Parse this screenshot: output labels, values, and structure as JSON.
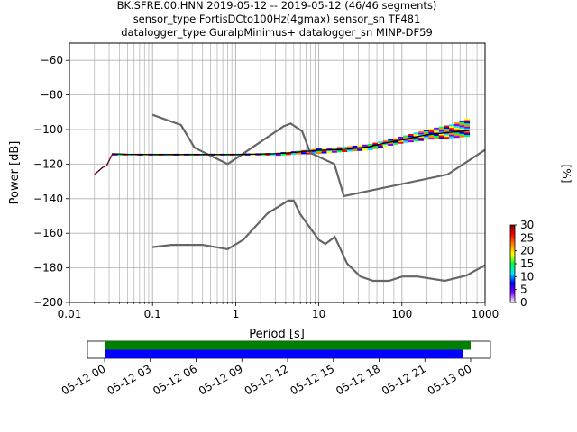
{
  "title_lines": [
    "BK.SFRE.00.HNN   2019-05-12 -- 2019-05-12  (46/46 segments)",
    "sensor_type FortisDCto100Hz(4gmax) sensor_sn TF481",
    "datalogger_type GuralpMinimus+ datalogger_sn MINP-DF59"
  ],
  "chart_data": [
    {
      "type": "heatmap",
      "xlabel": "Period [s]",
      "ylabel": "Power [dB]",
      "x_scale": "log",
      "xlim": [
        0.01,
        1000
      ],
      "ylim": [
        -200,
        -50
      ],
      "x_ticks": [
        {
          "value": 0.01,
          "label": "0.01"
        },
        {
          "value": 0.1,
          "label": "0.1"
        },
        {
          "value": 1,
          "label": "1"
        },
        {
          "value": 10,
          "label": "10"
        },
        {
          "value": 100,
          "label": "100"
        },
        {
          "value": 1000,
          "label": "1000"
        }
      ],
      "y_ticks": [
        -60,
        -80,
        -100,
        -120,
        -140,
        -160,
        -180,
        -200
      ],
      "grid": true,
      "colorbar": {
        "label": "[%]",
        "range": [
          0,
          30
        ],
        "ticks": [
          0,
          5,
          10,
          15,
          20,
          25,
          30
        ],
        "colors": [
          "#ffffff",
          "#8000ff",
          "#0000ff",
          "#00e6ff",
          "#00ff40",
          "#ffff00",
          "#ff8000",
          "#ff0000",
          "#800000"
        ]
      },
      "noise_models": {
        "color": "#666666",
        "high": [
          [
            0.1,
            -91.5
          ],
          [
            0.22,
            -97.4
          ],
          [
            0.32,
            -110.5
          ],
          [
            0.8,
            -120
          ],
          [
            3.8,
            -98
          ],
          [
            4.6,
            -96.5
          ],
          [
            6.3,
            -101
          ],
          [
            7.9,
            -113.5
          ],
          [
            15.4,
            -120
          ],
          [
            20,
            -138.5
          ],
          [
            354.8,
            -126
          ],
          [
            10000,
            -80.1
          ]
        ],
        "low": [
          [
            0.1,
            -168
          ],
          [
            0.17,
            -166.7
          ],
          [
            0.4,
            -166.7
          ],
          [
            0.8,
            -169.2
          ],
          [
            1.24,
            -163.7
          ],
          [
            2.4,
            -148.6
          ],
          [
            4.3,
            -141.1
          ],
          [
            5,
            -141.1
          ],
          [
            6,
            -149
          ],
          [
            10,
            -163.8
          ],
          [
            12,
            -166.2
          ],
          [
            15.6,
            -162.1
          ],
          [
            21.9,
            -177.5
          ],
          [
            31.6,
            -185
          ],
          [
            45,
            -187.5
          ],
          [
            70,
            -187.5
          ],
          [
            101,
            -185
          ],
          [
            154,
            -185
          ],
          [
            328,
            -187.5
          ],
          [
            600,
            -184.4
          ],
          [
            10000,
            -151.5
          ]
        ]
      },
      "ppsd_mode": [
        [
          0.02,
          -126
        ],
        [
          0.025,
          -122
        ],
        [
          0.028,
          -121
        ],
        [
          0.033,
          -114
        ],
        [
          0.05,
          -114.3
        ],
        [
          0.1,
          -114.5
        ],
        [
          1,
          -114.5
        ],
        [
          3,
          -114
        ],
        [
          5,
          -113.3
        ],
        [
          10,
          -112
        ],
        [
          20,
          -111.5
        ],
        [
          40,
          -110
        ],
        [
          60,
          -108
        ],
        [
          100,
          -106
        ],
        [
          200,
          -103
        ],
        [
          400,
          -101.5
        ],
        [
          650,
          -100.5
        ]
      ],
      "ppsd_percentile_band": {
        "x": [
          0.033,
          0.1,
          1,
          3,
          5,
          10,
          20,
          40,
          60,
          100,
          200,
          400,
          650
        ],
        "upper": [
          -114,
          -114,
          -114,
          -113.5,
          -112.5,
          -111,
          -110,
          -108.5,
          -106.5,
          -104,
          -100,
          -97,
          -93
        ],
        "lower": [
          -115,
          -115,
          -115,
          -115,
          -114.5,
          -114,
          -113,
          -112,
          -110,
          -108,
          -106,
          -105,
          -104
        ]
      }
    },
    {
      "type": "timeline",
      "start": "2019-05-12 00:00",
      "end": "2019-05-13 01:30",
      "tick_labels": [
        "05-12 00",
        "05-12 03",
        "05-12 06",
        "05-12 09",
        "05-12 12",
        "05-12 15",
        "05-12 18",
        "05-12 21",
        "05-13 00"
      ],
      "bars": [
        {
          "color": "#008000",
          "start_hour": 0,
          "end_hour": 24
        },
        {
          "color": "#0000ff",
          "start_hour": 0,
          "end_hour": 23.5
        }
      ]
    }
  ]
}
